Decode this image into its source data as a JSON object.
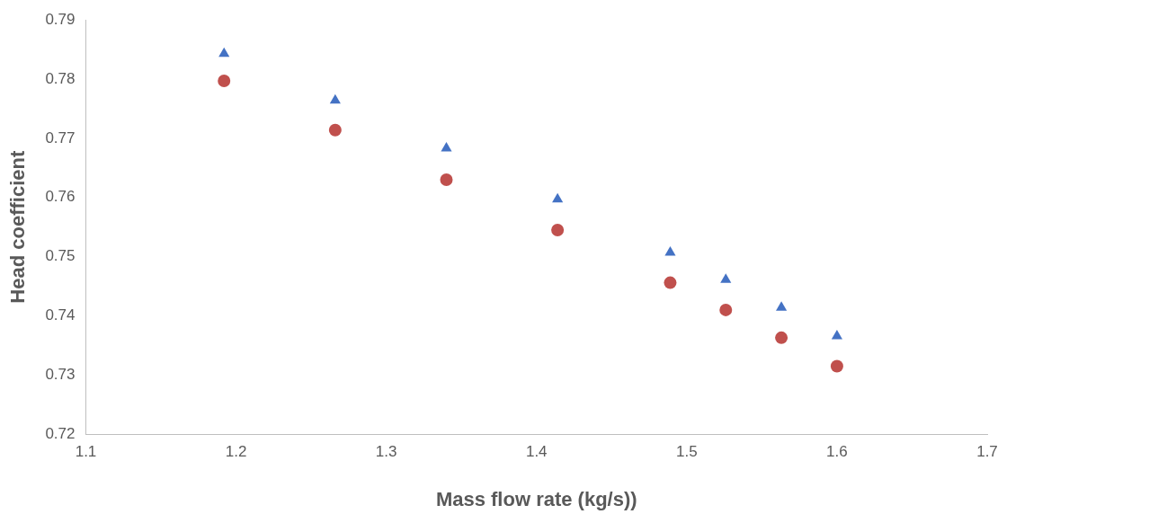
{
  "chart_data": {
    "type": "scatter",
    "xlabel": "Mass flow rate (kg/s))",
    "ylabel": "Head coefficient",
    "xlim": [
      1.1,
      1.7
    ],
    "xticks": [
      1.1,
      1.2,
      1.3,
      1.4,
      1.5,
      1.6,
      1.7
    ],
    "ylim": [
      0.72,
      0.79
    ],
    "yticks": [
      0.72,
      0.73,
      0.74,
      0.75,
      0.76,
      0.77,
      0.78,
      0.79
    ],
    "grid": false,
    "legend": false,
    "series": [
      {
        "color": "#4472c4",
        "marker": "triangle",
        "x": [
          1.192,
          1.266,
          1.34,
          1.414,
          1.489,
          1.526,
          1.563,
          1.6
        ],
        "values": [
          0.7843,
          0.7764,
          0.7683,
          0.7597,
          0.7507,
          0.7461,
          0.7414,
          0.7366
        ]
      },
      {
        "color": "#c0504d",
        "marker": "circle",
        "x": [
          1.192,
          1.266,
          1.34,
          1.414,
          1.489,
          1.526,
          1.563,
          1.6
        ],
        "values": [
          0.7797,
          0.7714,
          0.763,
          0.7545,
          0.7456,
          0.741,
          0.7363,
          0.7315
        ]
      }
    ]
  }
}
